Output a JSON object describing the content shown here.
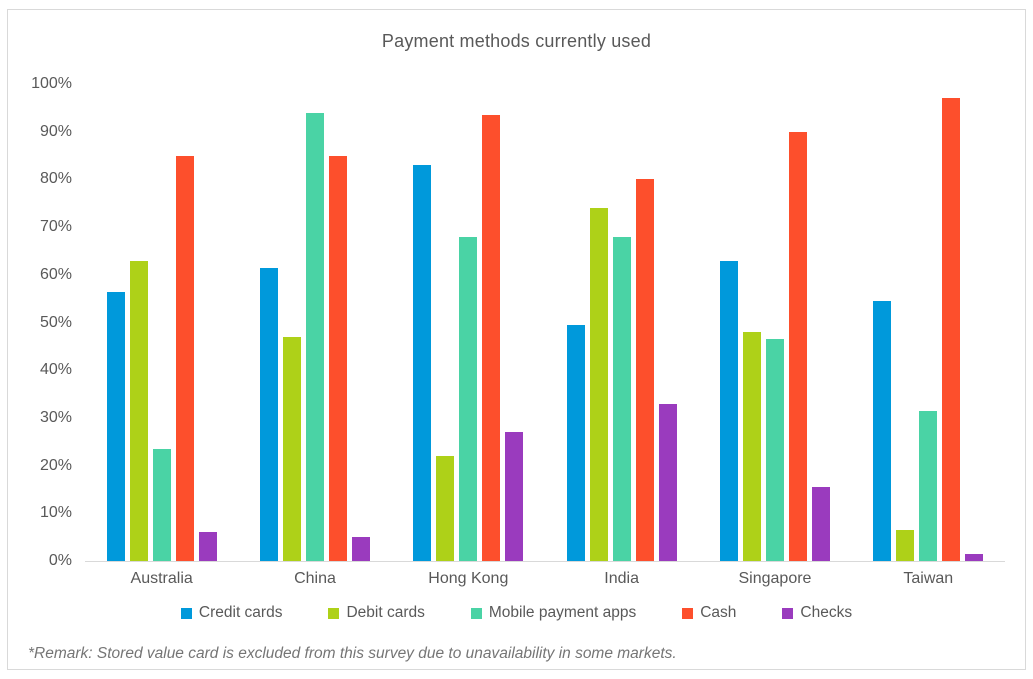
{
  "chart_data": {
    "type": "bar",
    "title": "Payment methods currently used",
    "categories": [
      "Australia",
      "China",
      "Hong Kong",
      "India",
      "Singapore",
      "Taiwan"
    ],
    "series": [
      {
        "name": "Credit cards",
        "color": "#0099DB",
        "values": [
          56.5,
          61.5,
          83,
          49.5,
          63,
          54.5
        ]
      },
      {
        "name": "Debit cards",
        "color": "#AED118",
        "values": [
          63,
          47,
          22,
          74,
          48,
          6.5
        ]
      },
      {
        "name": "Mobile payment apps",
        "color": "#4AD3A5",
        "values": [
          23.5,
          94,
          68,
          68,
          46.5,
          31.5
        ]
      },
      {
        "name": "Cash",
        "color": "#FD4F2C",
        "values": [
          85,
          85,
          93.5,
          80,
          90,
          97
        ]
      },
      {
        "name": "Checks",
        "color": "#9A3BBE",
        "values": [
          6,
          5,
          27,
          33,
          15.5,
          1.5
        ]
      }
    ],
    "ylim": [
      0,
      100
    ],
    "yticks": [
      "0%",
      "10%",
      "20%",
      "30%",
      "40%",
      "50%",
      "60%",
      "70%",
      "80%",
      "90%",
      "100%"
    ],
    "legend_position": "bottom",
    "grid": false,
    "axis_color": "#d9d9d9",
    "text_color": "#595959"
  },
  "footnote": "*Remark: Stored value card is excluded from this survey due to unavailability in some markets."
}
